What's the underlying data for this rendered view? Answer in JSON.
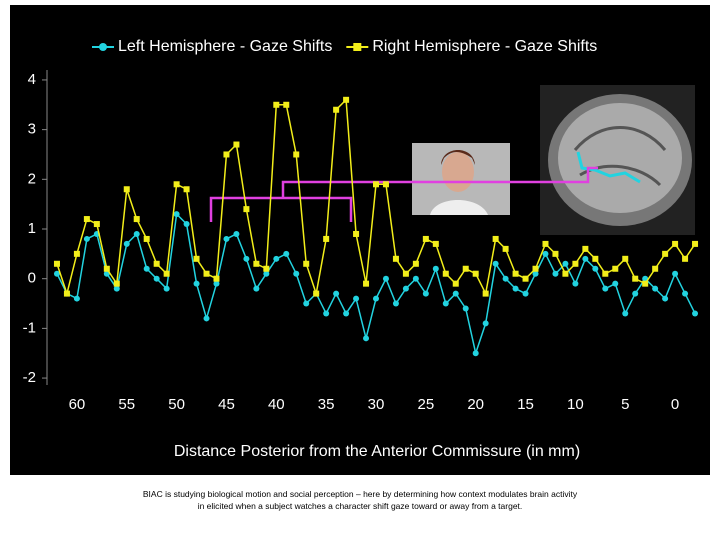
{
  "chart_data": {
    "type": "line",
    "legend": "top",
    "x_label": "Distance Posterior from the Anterior Commissure (in mm)",
    "x": [
      62,
      61,
      60,
      59,
      58,
      57,
      56,
      55,
      54,
      53,
      52,
      51,
      50,
      49,
      48,
      47,
      46,
      45,
      44,
      43,
      42,
      41,
      40,
      39,
      38,
      37,
      36,
      35,
      34,
      33,
      32,
      31,
      30,
      29,
      28,
      27,
      26,
      25,
      24,
      23,
      22,
      21,
      20,
      19,
      18,
      17,
      16,
      15,
      14,
      13,
      12,
      11,
      10,
      9,
      8,
      7,
      6,
      5,
      4,
      3,
      2,
      1,
      0,
      -1,
      -2
    ],
    "series": [
      {
        "name": "Left Hemisphere - Gaze Shifts",
        "color": "#22d3e0",
        "marker": "circle",
        "values": [
          0.1,
          -0.3,
          -0.4,
          0.8,
          0.9,
          0.1,
          -0.2,
          0.7,
          0.9,
          0.2,
          0.0,
          -0.2,
          1.3,
          1.1,
          -0.1,
          -0.8,
          -0.1,
          0.8,
          0.9,
          0.4,
          -0.2,
          0.1,
          0.4,
          0.5,
          0.1,
          -0.5,
          -0.3,
          -0.7,
          -0.3,
          -0.7,
          -0.4,
          -1.2,
          -0.4,
          0.0,
          -0.5,
          -0.2,
          0.0,
          -0.3,
          0.2,
          -0.5,
          -0.3,
          -0.6,
          -1.5,
          -0.9,
          0.3,
          0.0,
          -0.2,
          -0.3,
          0.1,
          0.5,
          0.1,
          0.3,
          -0.1,
          0.4,
          0.2,
          -0.2,
          -0.1,
          -0.7,
          -0.3,
          0.0,
          -0.2,
          -0.4,
          0.1,
          -0.3,
          -0.7
        ]
      },
      {
        "name": "Right Hemisphere - Gaze Shifts",
        "color": "#f2ee1a",
        "marker": "square",
        "values": [
          0.3,
          -0.3,
          0.5,
          1.2,
          1.1,
          0.2,
          -0.1,
          1.8,
          1.2,
          0.8,
          0.3,
          0.1,
          1.9,
          1.8,
          0.4,
          0.1,
          0.0,
          2.5,
          2.7,
          1.4,
          0.3,
          0.2,
          3.5,
          3.5,
          2.5,
          0.3,
          -0.3,
          0.8,
          3.4,
          3.6,
          0.9,
          -0.1,
          1.9,
          1.9,
          0.4,
          0.1,
          0.3,
          0.8,
          0.7,
          0.1,
          -0.1,
          0.2,
          0.1,
          -0.3,
          0.8,
          0.6,
          0.1,
          0.0,
          0.2,
          0.7,
          0.5,
          0.1,
          0.3,
          0.6,
          0.4,
          0.1,
          0.2,
          0.4,
          0.0,
          -0.1,
          0.2,
          0.5,
          0.7,
          0.4,
          0.7
        ]
      }
    ],
    "xlim": [
      63,
      -3
    ],
    "xticks": [
      60,
      55,
      50,
      45,
      40,
      35,
      30,
      25,
      20,
      15,
      10,
      5,
      0
    ],
    "ylim": [
      -2.2,
      4.2
    ],
    "yticks": [
      -2,
      -1,
      0,
      1,
      2,
      3,
      4
    ]
  },
  "caption": [
    "BIAC is studying biological motion and social perception – here by determining how context modulates brain activity",
    "in elicited when a subject watches a character shift gaze toward or away from a target."
  ]
}
